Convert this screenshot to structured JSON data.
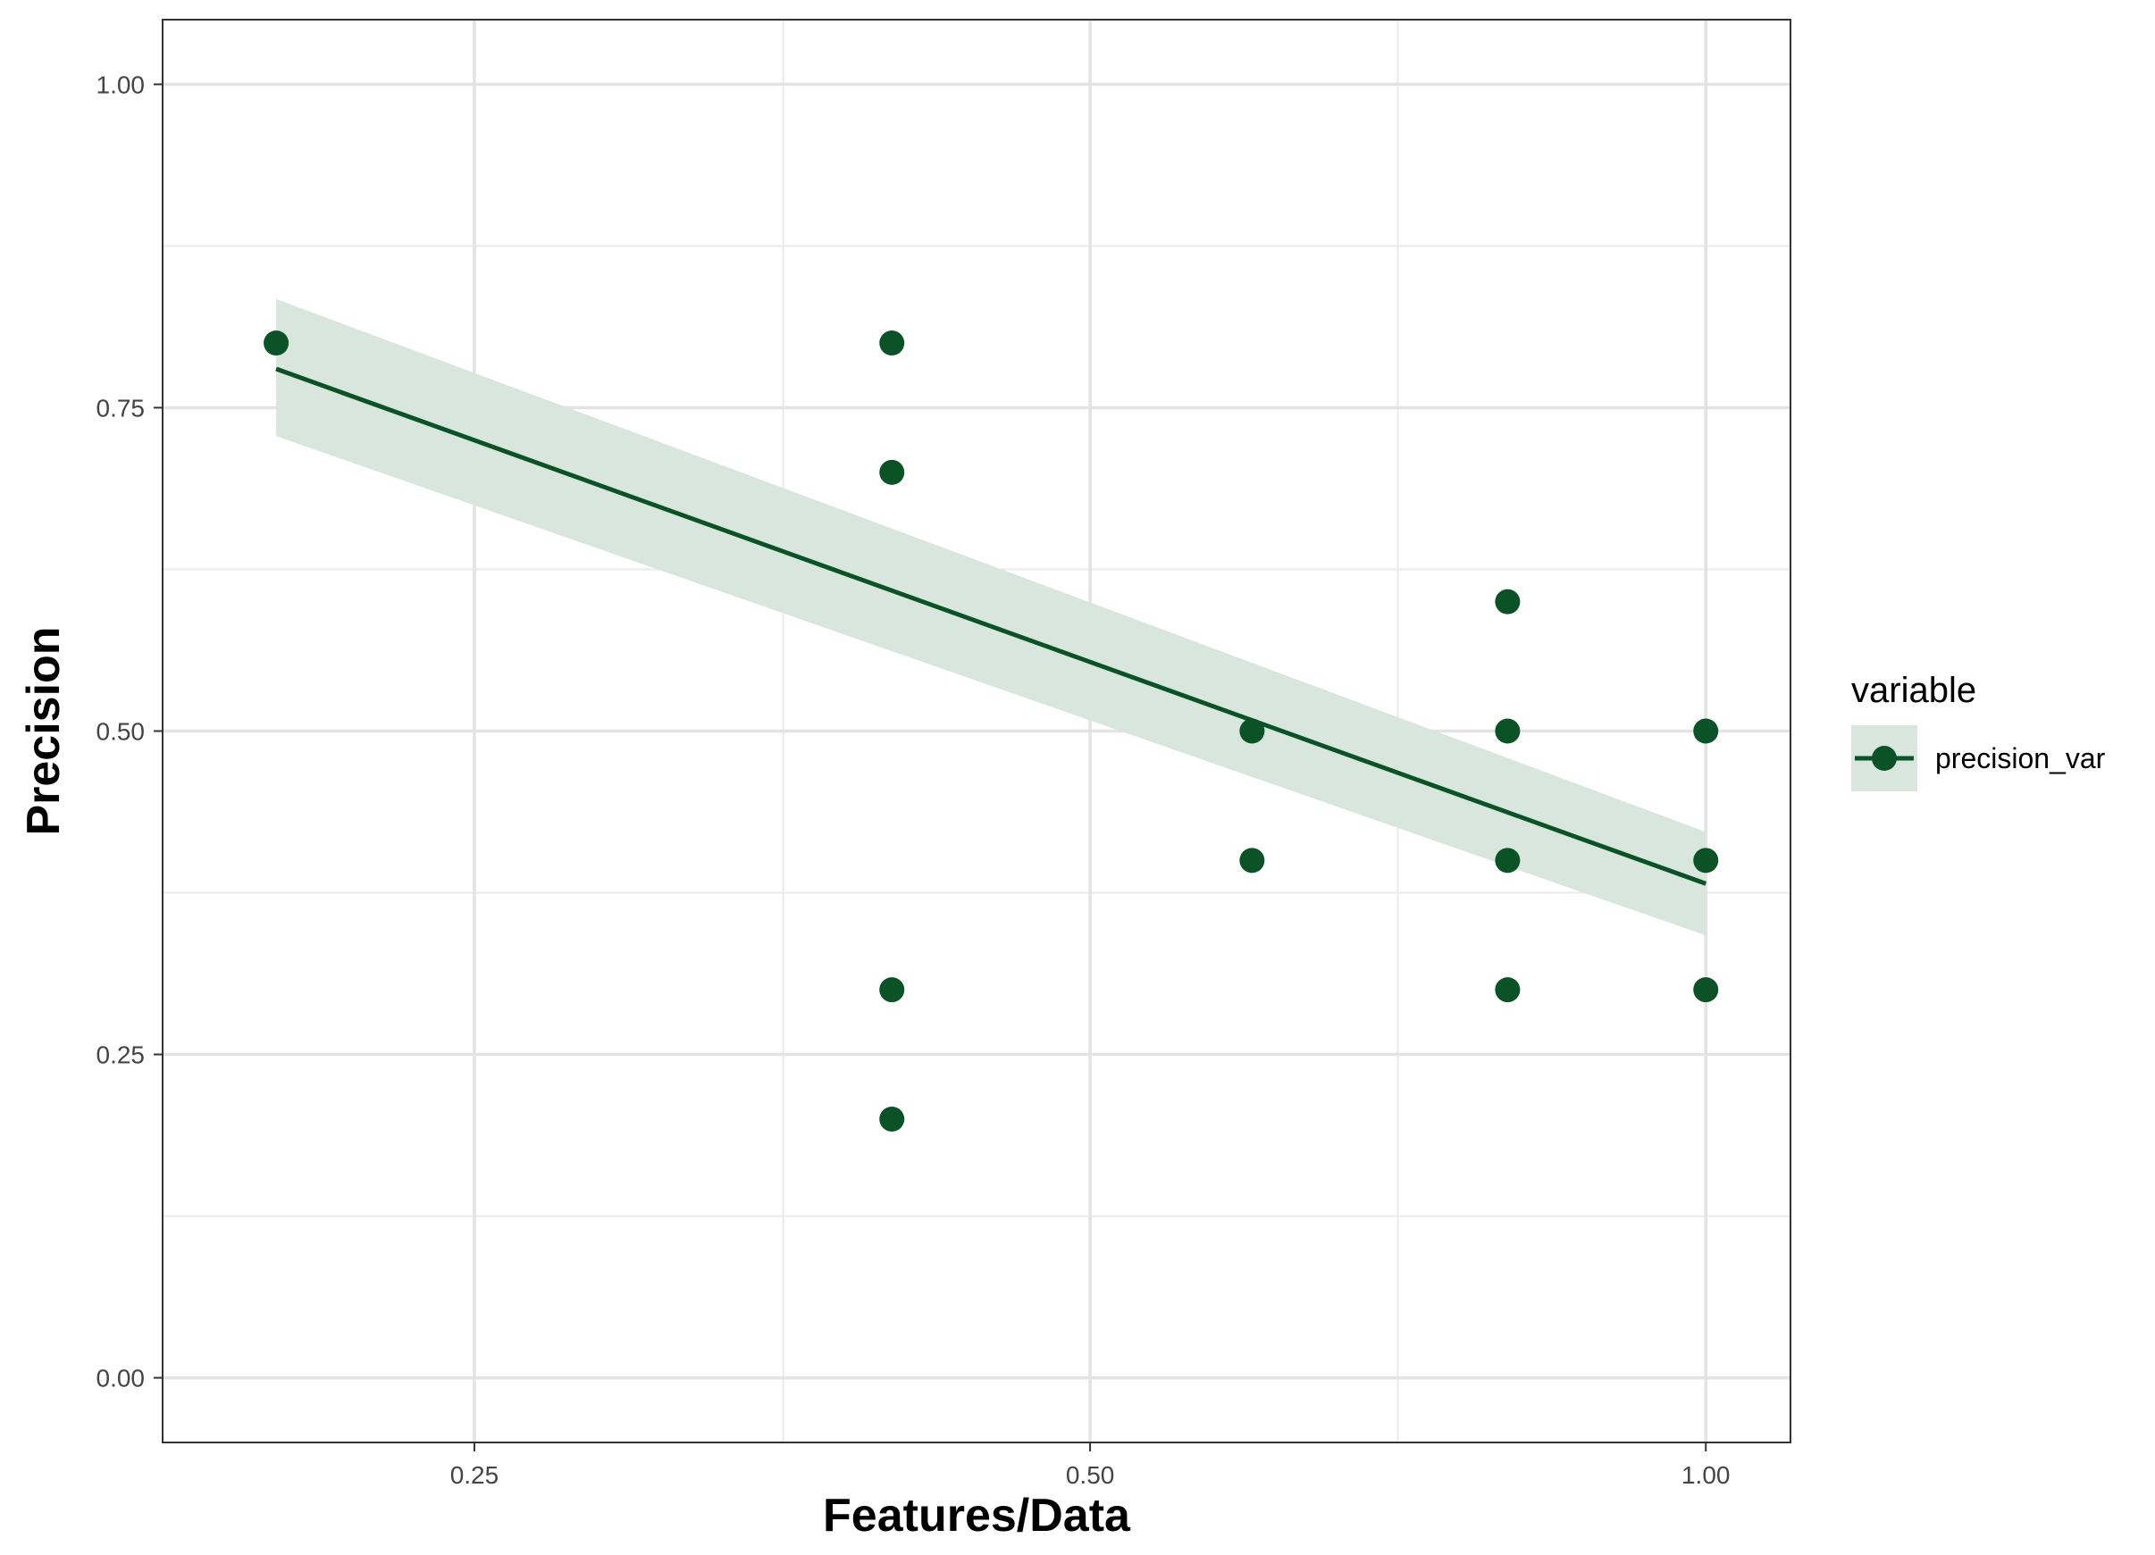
{
  "chart_data": {
    "type": "scatter",
    "xlabel": "Features/Data",
    "ylabel": "Precision",
    "x_scale": "log",
    "x_ticks": [
      0.25,
      0.5,
      1.0
    ],
    "x_tick_labels": [
      "0.25",
      "0.50",
      "1.00"
    ],
    "x_minor_ticks": [
      0.354,
      0.707
    ],
    "xlim": [
      0.176,
      1.1
    ],
    "y_ticks": [
      0,
      0.25,
      0.5,
      0.75,
      1.0
    ],
    "y_tick_labels": [
      "0.00",
      "0.25",
      "0.50",
      "0.75",
      "1.00"
    ],
    "y_minor_ticks": [
      0.125,
      0.375,
      0.625,
      0.875
    ],
    "ylim": [
      -0.05,
      1.05
    ],
    "grid": true,
    "legend": {
      "title": "variable",
      "position": "right",
      "entries": [
        "precision_var"
      ]
    },
    "series": [
      {
        "name": "precision_var",
        "color": "#0b5227",
        "points": [
          {
            "x": 0.2,
            "y": 0.8
          },
          {
            "x": 0.4,
            "y": 0.8
          },
          {
            "x": 0.4,
            "y": 0.7
          },
          {
            "x": 0.4,
            "y": 0.3
          },
          {
            "x": 0.4,
            "y": 0.2
          },
          {
            "x": 0.6,
            "y": 0.5
          },
          {
            "x": 0.6,
            "y": 0.4
          },
          {
            "x": 0.8,
            "y": 0.6
          },
          {
            "x": 0.8,
            "y": 0.5
          },
          {
            "x": 0.8,
            "y": 0.4
          },
          {
            "x": 0.8,
            "y": 0.3
          },
          {
            "x": 1.0,
            "y": 0.5
          },
          {
            "x": 1.0,
            "y": 0.4
          },
          {
            "x": 1.0,
            "y": 0.3
          }
        ]
      }
    ],
    "trend_line": {
      "x": [
        0.2,
        1.0
      ],
      "y": [
        0.78,
        0.382
      ],
      "ci_lower": [
        0.728,
        0.342
      ],
      "ci_upper": [
        0.834,
        0.422
      ],
      "color": "#0b5227",
      "band_color": "#d9e6dd"
    }
  }
}
